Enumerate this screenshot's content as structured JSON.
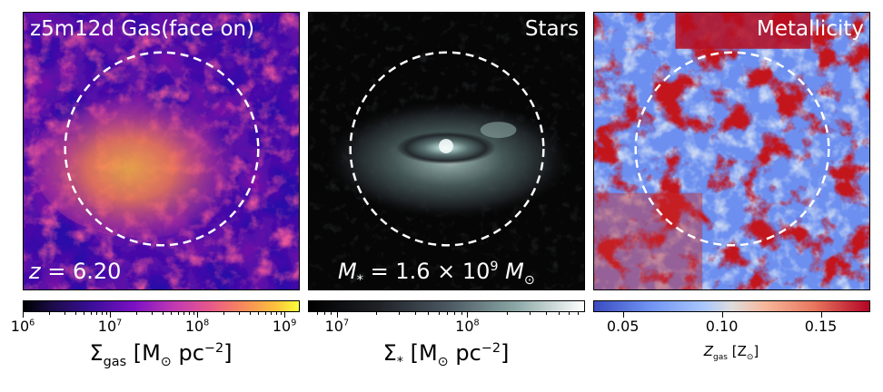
{
  "figure": {
    "simulation": "z5m12d"
  },
  "panels": [
    {
      "name": "gas",
      "title": "z5m12d  Gas(face on)",
      "bottom_prefix": "z",
      "bottom_value": "= 6.20",
      "colormap": "plasma"
    },
    {
      "name": "stars",
      "title": "Stars",
      "bottom_prefix": "M",
      "bottom_sub": "*",
      "bottom_value": "= 1.6 × 10",
      "bottom_exp": "9",
      "bottom_unit": "M",
      "bottom_unit_sub": "⊙",
      "colormap": "bone"
    },
    {
      "name": "metallicity",
      "title": "Metallicity",
      "colormap": "coolwarm"
    }
  ],
  "chart_data": [
    {
      "type": "heatmap",
      "title": "z5m12d  Gas(face on)",
      "quantity": "gas surface density",
      "colorbar": {
        "scale": "log",
        "range": [
          1000000,
          1500000000
        ],
        "ticks": [
          {
            "base": "10",
            "exp": "6"
          },
          {
            "base": "10",
            "exp": "7"
          },
          {
            "base": "10",
            "exp": "8"
          },
          {
            "base": "10",
            "exp": "9"
          }
        ],
        "label": "Σgas [M⊙ pc−2]"
      },
      "annotation": "z = 6.20",
      "circle": "dashed white circle centered on galaxy"
    },
    {
      "type": "heatmap",
      "title": "Stars",
      "quantity": "stellar surface density",
      "colorbar": {
        "scale": "log",
        "range": [
          6000000,
          800000000
        ],
        "ticks": [
          {
            "base": "10",
            "exp": "7"
          },
          {
            "base": "10",
            "exp": "8"
          }
        ],
        "label": "Σ* [M⊙ pc−2]"
      },
      "annotation": "M* = 1.6 × 10^9 M⊙"
    },
    {
      "type": "heatmap",
      "title": "Metallicity",
      "quantity": "gas metallicity",
      "colorbar": {
        "scale": "linear",
        "range": [
          0.035,
          0.175
        ],
        "ticks": [
          "0.05",
          "0.10",
          "0.15"
        ],
        "label": "Zgas [Z⊙]"
      }
    }
  ],
  "colorbar_labels": {
    "gas": {
      "sym": "Σ",
      "sub": "gas",
      "unit": " [M",
      "unit_sub": "⊙",
      "unit_rest": " pc",
      "exp": "−2",
      "close": "]"
    },
    "stars": {
      "sym": "Σ",
      "sub": "*",
      "unit": " [M",
      "unit_sub": "⊙",
      "unit_rest": " pc",
      "exp": "−2",
      "close": "]"
    },
    "metal": {
      "sym": "Z",
      "sub": "gas",
      "unit": " [Z",
      "unit_sub": "⊙",
      "close": "]"
    }
  },
  "colors": {
    "background": "#ffffff",
    "annotation": "#ffffff"
  }
}
